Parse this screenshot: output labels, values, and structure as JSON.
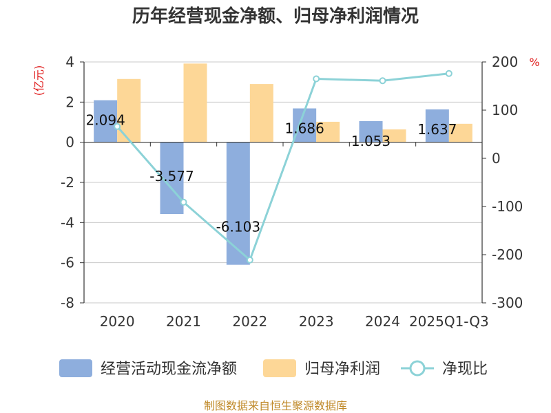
{
  "title": "历年经营现金净额、归母净利润情况",
  "source": "制图数据来自恒生聚源数据库",
  "colors": {
    "cash": "#8eaedd",
    "profit": "#fdd797",
    "ratio": "#8cd2d7",
    "grid": "#c8c8c8",
    "axis": "#333333",
    "unit": "#e01f1f"
  },
  "chart_data": {
    "type": "bar",
    "categories": [
      "2020",
      "2021",
      "2022",
      "2023",
      "2024",
      "2025Q1-Q3"
    ],
    "y_left": {
      "label": "(亿元)",
      "min": -8,
      "max": 4,
      "ticks": [
        4,
        2,
        0,
        -2,
        -4,
        -6,
        -8
      ]
    },
    "y_right": {
      "label": "%",
      "min": -300,
      "max": 200,
      "ticks": [
        200,
        100,
        0,
        -100,
        -200,
        -300
      ]
    },
    "grid": true,
    "legend_position": "bottom",
    "series": [
      {
        "name": "经营活动现金流净额",
        "type": "bar",
        "axis": "left",
        "values": [
          2.094,
          -3.577,
          -6.103,
          1.686,
          1.053,
          1.637
        ],
        "labels": [
          "2.094",
          "-3.577",
          "-6.103",
          "1.686",
          "1.053",
          "1.637"
        ]
      },
      {
        "name": "归母净利润",
        "type": "bar",
        "axis": "left",
        "values": [
          3.15,
          3.92,
          2.9,
          1.02,
          0.64,
          0.92
        ]
      },
      {
        "name": "净现比",
        "type": "line",
        "axis": "right",
        "values": [
          66,
          -91,
          -211,
          165,
          161,
          176
        ]
      }
    ]
  }
}
